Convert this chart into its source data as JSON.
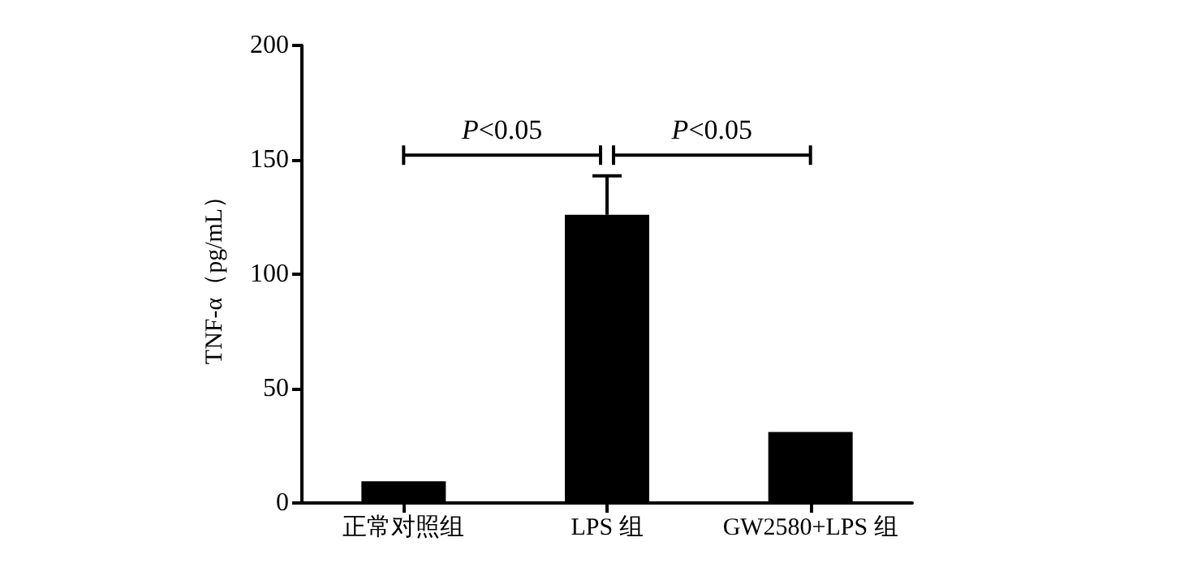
{
  "chart_data": {
    "type": "bar",
    "ylabel": "TNF-α（pg/mL）",
    "categories": [
      "正常对照组",
      "LPS 组",
      "GW2580+LPS 组"
    ],
    "values": [
      9.5,
      126,
      31
    ],
    "errors": [
      null,
      [
        126,
        143
      ],
      null
    ],
    "color": "#000000",
    "ylim": [
      0,
      200
    ],
    "yticks": [
      0,
      50,
      100,
      150,
      200
    ],
    "grid": false,
    "annotations": [
      "P<0.05",
      "P<0.05"
    ]
  }
}
